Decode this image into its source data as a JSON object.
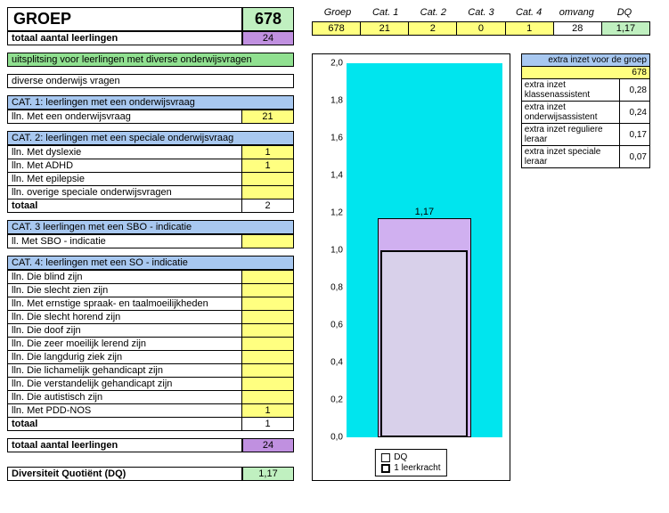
{
  "colors": {
    "green": "#c0f0c0",
    "purple": "#c090e0",
    "green_band": "#90e090",
    "blue_hdr": "#a8c8f0",
    "yellow": "#ffff80",
    "chart_bg": "#00e5ee",
    "dq_bar": "#d0b0f0",
    "leerk_bar": "#d8d0ea"
  },
  "left": {
    "groep_label": "GROEP",
    "groep_value": "678",
    "totaal1_label": "totaal aantal leerlingen",
    "totaal1_value": "24",
    "band_green": "uitsplitsing voor leerlingen met diverse onderwijsvragen",
    "diverse": "diverse onderwijs vragen",
    "cat1": {
      "title": "CAT. 1: leerlingen met een onderwijsvraag",
      "rows": [
        {
          "label": "lln. Met een onderwijsvraag",
          "val": "21",
          "yellow": true
        }
      ]
    },
    "cat2": {
      "title": "CAT. 2: leerlingen met een speciale onderwijsvraag",
      "rows": [
        {
          "label": "lln. Met dyslexie",
          "val": "1",
          "yellow": true
        },
        {
          "label": "lln. Met ADHD",
          "val": "1",
          "yellow": true
        },
        {
          "label": "lln. Met epilepsie",
          "val": "",
          "yellow": true
        },
        {
          "label": "lln. overige speciale onderwijsvragen",
          "val": "",
          "yellow": true
        },
        {
          "label": "totaal",
          "val": "2",
          "yellow": false,
          "bold": true
        }
      ]
    },
    "cat3": {
      "title": "CAT. 3 leerlingen met een SBO - indicatie",
      "rows": [
        {
          "label": "ll. Met SBO - indicatie",
          "val": "",
          "yellow": true
        }
      ]
    },
    "cat4": {
      "title": "CAT. 4: leerlingen met een SO - indicatie",
      "rows": [
        {
          "label": "lln. Die blind zijn",
          "val": "",
          "yellow": true
        },
        {
          "label": "lln. Die slecht zien zijn",
          "val": "",
          "yellow": true
        },
        {
          "label": "lln. Met ernstige spraak- en taalmoeilijkheden",
          "val": "",
          "yellow": true
        },
        {
          "label": "lln. Die slecht horend zijn",
          "val": "",
          "yellow": true
        },
        {
          "label": "lln. Die doof zijn",
          "val": "",
          "yellow": true
        },
        {
          "label": "lln. Die zeer moeilijk lerend zijn",
          "val": "",
          "yellow": true
        },
        {
          "label": "lln. Die langdurig ziek zijn",
          "val": "",
          "yellow": true
        },
        {
          "label": "lln. Die lichamelijk gehandicapt zijn",
          "val": "",
          "yellow": true
        },
        {
          "label": "lln. Die verstandelijk gehandicapt zijn",
          "val": "",
          "yellow": true
        },
        {
          "label": "lln. Die autistisch zijn",
          "val": "",
          "yellow": true
        },
        {
          "label": "lln. Met PDD-NOS",
          "val": "1",
          "yellow": true
        },
        {
          "label": "totaal",
          "val": "1",
          "yellow": false,
          "bold": true
        }
      ]
    },
    "totaal2_label": "totaal aantal leerlingen",
    "totaal2_value": "24",
    "dq_label": "Diversiteit Quotiënt  (DQ)",
    "dq_value": "1,17"
  },
  "right": {
    "top_headers": [
      "Groep",
      "Cat. 1",
      "Cat. 2",
      "Cat. 3",
      "Cat. 4",
      "omvang",
      "DQ"
    ],
    "top_values": [
      "678",
      "21",
      "2",
      "0",
      "1",
      "28",
      "1,17"
    ],
    "top_value_bg": [
      "#ffff80",
      "#ffff80",
      "#ffff80",
      "#ffff80",
      "#ffff80",
      "#ffffff",
      "#c0f0c0"
    ],
    "chart": {
      "ylim": [
        0,
        2.0
      ],
      "ytick_step": 0.2,
      "ticks": [
        "2,0",
        "1,8",
        "1,6",
        "1,4",
        "1,2",
        "1,0",
        "0,8",
        "0,6",
        "0,4",
        "0,2",
        "0,0"
      ],
      "dq_value": 1.17,
      "dq_label": "1,17",
      "leerk_value": 1.0,
      "legend_dq": "DQ",
      "legend_leerk": "1 leerkracht"
    },
    "extra": {
      "title": "extra inzet voor de groep",
      "groep": "678",
      "rows": [
        {
          "label": "extra inzet klassenassistent",
          "val": "0,28"
        },
        {
          "label": "extra inzet onderwijsassistent",
          "val": "0,24"
        },
        {
          "label": "extra inzet reguliere leraar",
          "val": "0,17"
        },
        {
          "label": "extra inzet speciale leraar",
          "val": "0,07"
        }
      ]
    }
  }
}
